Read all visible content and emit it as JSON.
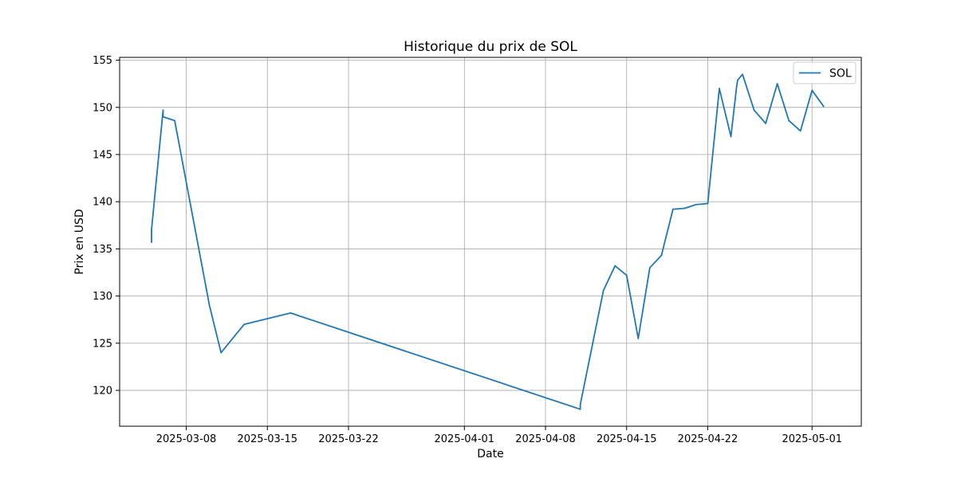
{
  "chart_data": {
    "type": "line",
    "title": "Historique du prix de SOL",
    "xlabel": "Date",
    "ylabel": "Prix en USD",
    "grid": true,
    "legend_position": "top-right",
    "x_ticks": [
      "2025-03-08",
      "2025-03-15",
      "2025-03-22",
      "2025-04-01",
      "2025-04-08",
      "2025-04-15",
      "2025-04-22",
      "2025-05-01"
    ],
    "y_ticks": [
      120,
      125,
      130,
      135,
      140,
      145,
      150,
      155
    ],
    "xlim": [
      "2025-03-02T06:00",
      "2025-05-05T06:00"
    ],
    "ylim": [
      116.2,
      155.3
    ],
    "colors": {
      "series": "#1f77b4",
      "grid": "#b0b0b0"
    },
    "series": [
      {
        "name": "SOL",
        "points": [
          [
            "2025-03-05T00:00",
            135.7
          ],
          [
            "2025-03-05T00:00",
            137.0
          ],
          [
            "2025-03-06T00:00",
            149.7
          ],
          [
            "2025-03-06T00:00",
            149.0
          ],
          [
            "2025-03-07T00:00",
            148.6
          ],
          [
            "2025-03-10T00:00",
            129.0
          ],
          [
            "2025-03-11T00:00",
            124.0
          ],
          [
            "2025-03-13T00:00",
            127.0
          ],
          [
            "2025-03-17T00:00",
            128.2
          ],
          [
            "2025-04-11T00:00",
            118.0
          ],
          [
            "2025-04-11T00:00",
            118.5
          ],
          [
            "2025-04-13T00:00",
            130.6
          ],
          [
            "2025-04-14T00:00",
            133.2
          ],
          [
            "2025-04-15T00:00",
            132.2
          ],
          [
            "2025-04-16T00:00",
            125.5
          ],
          [
            "2025-04-17T00:00",
            133.0
          ],
          [
            "2025-04-18T00:00",
            134.3
          ],
          [
            "2025-04-19T00:00",
            139.2
          ],
          [
            "2025-04-20T00:00",
            139.3
          ],
          [
            "2025-04-21T00:00",
            139.7
          ],
          [
            "2025-04-22T00:00",
            139.8
          ],
          [
            "2025-04-23T00:00",
            152.0
          ],
          [
            "2025-04-24T00:00",
            146.9
          ],
          [
            "2025-04-24T12:00",
            152.3
          ],
          [
            "2025-04-24T14:00",
            152.9
          ],
          [
            "2025-04-25T00:00",
            153.5
          ],
          [
            "2025-04-26T00:00",
            149.7
          ],
          [
            "2025-04-27T00:00",
            148.3
          ],
          [
            "2025-04-28T00:00",
            152.5
          ],
          [
            "2025-04-29T00:00",
            148.6
          ],
          [
            "2025-04-30T00:00",
            147.5
          ],
          [
            "2025-05-01T00:00",
            151.8
          ],
          [
            "2025-05-02T00:00",
            150.1
          ]
        ]
      }
    ]
  }
}
